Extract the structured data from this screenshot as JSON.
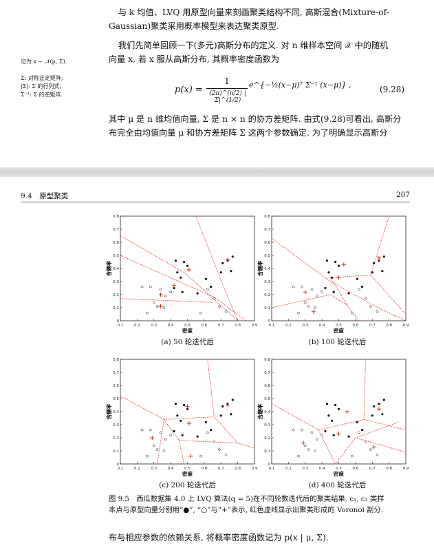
{
  "top_page": {
    "paragraph1": [
      "与 k 均值、LVQ 用原型向量来刻画聚类结构不同, 高斯混合(Mixture-of-",
      "Gaussian)聚类采用概率模型来表达聚类原型."
    ],
    "paragraph2": [
      "我们先简单回顾一下(多元)高斯分布的定义. 对 n 维样本空间 𝒳 中的随机",
      "向量 x, 若 x 服从高斯分布, 其概率密度函数为"
    ],
    "margin_notes": {
      "note1": "记为 x ∼ 𝒩(μ, Σ).",
      "note2": [
        "Σ: 对称正定矩阵;",
        "|Σ|: Σ 的行列式;",
        "Σ⁻¹: Σ 的逆矩阵."
      ]
    },
    "equation": {
      "lhs": "p(x) =",
      "numerator": "1",
      "denominator": "(2π)^(n/2) |Σ|^(1/2)",
      "exp": "e^{−½(x−μ)ᵀ Σ⁻¹ (x−μ)} ,",
      "number": "(9.28)"
    },
    "paragraph3": [
      "其中 μ 是 n 维均值向量, Σ 是 n × n 的协方差矩阵. 由式(9.28)可看出, 高斯分",
      "布完全由均值向量 μ 和协方差矩阵 Σ 这两个参数确定. 为了明确显示高斯分"
    ]
  },
  "bottom_page": {
    "header_left": "9.4　原型聚类",
    "header_right": "207",
    "subfig_captions": [
      "(a) 50 轮迭代后",
      "(b) 100 轮迭代后",
      "(c) 200 轮迭代后",
      "(d) 400 轮迭代后"
    ],
    "axis_xlabel": "密度",
    "axis_ylabel": "含糖率",
    "x_ticks": [
      "0.1",
      "0.2",
      "0.3",
      "0.4",
      "0.5",
      "0.6",
      "0.7",
      "0.8",
      "0.9"
    ],
    "y_ticks": [
      "0",
      "0.1",
      "0.2",
      "0.3",
      "0.4",
      "0.5",
      "0.6",
      "0.7",
      "0.8"
    ],
    "figure_caption": [
      "图 9.5　西瓜数据集 4.0 上 LVQ 算法(q = 5)在不同轮数迭代后的聚类结果. c₁, c₂ 类样",
      "本点与原型向量分别用“●”, “○”与“+”表示, 红色虚线显示出聚类形成的 Voronoi 剖分."
    ],
    "last_line": "布与相应参数的依赖关系, 将概率密度函数记为 p(x | μ, Σ)."
  },
  "chart_data": [
    {
      "type": "scatter",
      "title": "(a) 50 轮迭代后",
      "xlabel": "密度",
      "ylabel": "含糖率",
      "xlim": [
        0.1,
        0.9
      ],
      "ylim": [
        0,
        0.8
      ],
      "series": [
        {
          "name": "c1",
          "marker": "filled-dot",
          "points": [
            [
              0.43,
              0.46
            ],
            [
              0.48,
              0.45
            ],
            [
              0.44,
              0.37
            ],
            [
              0.5,
              0.42
            ],
            [
              0.46,
              0.33
            ],
            [
              0.42,
              0.25
            ],
            [
              0.47,
              0.22
            ],
            [
              0.56,
              0.21
            ],
            [
              0.61,
              0.32
            ],
            [
              0.64,
              0.26
            ],
            [
              0.7,
              0.37
            ],
            [
              0.74,
              0.46
            ],
            [
              0.77,
              0.49
            ],
            [
              0.76,
              0.38
            ],
            [
              0.71,
              0.44
            ]
          ]
        },
        {
          "name": "c2",
          "marker": "hollow-dot",
          "points": [
            [
              0.23,
              0.26
            ],
            [
              0.28,
              0.26
            ],
            [
              0.34,
              0.24
            ],
            [
              0.37,
              0.19
            ],
            [
              0.4,
              0.22
            ],
            [
              0.32,
              0.11
            ],
            [
              0.36,
              0.1
            ],
            [
              0.26,
              0.06
            ],
            [
              0.3,
              0.14
            ],
            [
              0.58,
              0.06
            ],
            [
              0.66,
              0.17
            ],
            [
              0.69,
              0.11
            ],
            [
              0.73,
              0.07
            ],
            [
              0.62,
              0.24
            ]
          ]
        },
        {
          "name": "prototypes",
          "marker": "plus",
          "color": "#d9301f",
          "points": [
            [
              0.34,
              0.11
            ],
            [
              0.34,
              0.2
            ],
            [
              0.42,
              0.27
            ],
            [
              0.51,
              0.39
            ],
            [
              0.74,
              0.47
            ]
          ]
        }
      ],
      "boundaries_color": "#d9301f"
    },
    {
      "type": "scatter",
      "title": "(b) 100 轮迭代后",
      "xlabel": "密度",
      "ylabel": "含糖率",
      "xlim": [
        0.1,
        0.9
      ],
      "ylim": [
        0,
        0.8
      ],
      "series": [
        {
          "name": "c1",
          "marker": "filled-dot",
          "points": [
            [
              0.43,
              0.46
            ],
            [
              0.48,
              0.45
            ],
            [
              0.44,
              0.37
            ],
            [
              0.5,
              0.42
            ],
            [
              0.46,
              0.33
            ],
            [
              0.42,
              0.25
            ],
            [
              0.47,
              0.22
            ],
            [
              0.56,
              0.21
            ],
            [
              0.61,
              0.32
            ],
            [
              0.64,
              0.26
            ],
            [
              0.7,
              0.37
            ],
            [
              0.74,
              0.46
            ],
            [
              0.77,
              0.49
            ],
            [
              0.76,
              0.38
            ],
            [
              0.71,
              0.44
            ]
          ]
        },
        {
          "name": "c2",
          "marker": "hollow-dot",
          "points": [
            [
              0.23,
              0.26
            ],
            [
              0.28,
              0.26
            ],
            [
              0.34,
              0.24
            ],
            [
              0.37,
              0.19
            ],
            [
              0.4,
              0.22
            ],
            [
              0.32,
              0.11
            ],
            [
              0.36,
              0.1
            ],
            [
              0.26,
              0.06
            ],
            [
              0.3,
              0.14
            ],
            [
              0.58,
              0.06
            ],
            [
              0.66,
              0.17
            ],
            [
              0.69,
              0.11
            ],
            [
              0.73,
              0.07
            ],
            [
              0.62,
              0.24
            ]
          ]
        },
        {
          "name": "prototypes",
          "marker": "plus",
          "color": "#d9301f",
          "points": [
            [
              0.35,
              0.07
            ],
            [
              0.3,
              0.22
            ],
            [
              0.5,
              0.33
            ],
            [
              0.53,
              0.43
            ],
            [
              0.74,
              0.48
            ]
          ]
        }
      ],
      "boundaries_color": "#d9301f"
    },
    {
      "type": "scatter",
      "title": "(c) 200 轮迭代后",
      "xlabel": "密度",
      "ylabel": "含糖率",
      "xlim": [
        0.1,
        0.9
      ],
      "ylim": [
        0,
        0.8
      ],
      "series": [
        {
          "name": "c1",
          "marker": "filled-dot",
          "points": [
            [
              0.43,
              0.46
            ],
            [
              0.48,
              0.45
            ],
            [
              0.44,
              0.37
            ],
            [
              0.5,
              0.42
            ],
            [
              0.46,
              0.33
            ],
            [
              0.42,
              0.25
            ],
            [
              0.47,
              0.22
            ],
            [
              0.56,
              0.21
            ],
            [
              0.61,
              0.32
            ],
            [
              0.64,
              0.26
            ],
            [
              0.7,
              0.37
            ],
            [
              0.74,
              0.46
            ],
            [
              0.77,
              0.49
            ],
            [
              0.76,
              0.38
            ],
            [
              0.71,
              0.44
            ]
          ]
        },
        {
          "name": "c2",
          "marker": "hollow-dot",
          "points": [
            [
              0.23,
              0.26
            ],
            [
              0.28,
              0.26
            ],
            [
              0.34,
              0.24
            ],
            [
              0.37,
              0.19
            ],
            [
              0.4,
              0.22
            ],
            [
              0.32,
              0.11
            ],
            [
              0.36,
              0.1
            ],
            [
              0.26,
              0.06
            ],
            [
              0.3,
              0.14
            ],
            [
              0.58,
              0.06
            ],
            [
              0.66,
              0.17
            ],
            [
              0.69,
              0.11
            ],
            [
              0.73,
              0.07
            ],
            [
              0.62,
              0.24
            ]
          ]
        },
        {
          "name": "prototypes",
          "marker": "plus",
          "color": "#d9301f",
          "points": [
            [
              0.29,
              0.2
            ],
            [
              0.52,
              0.06
            ],
            [
              0.51,
              0.31
            ],
            [
              0.5,
              0.44
            ],
            [
              0.74,
              0.45
            ]
          ]
        }
      ],
      "boundaries_color": "#d9301f"
    },
    {
      "type": "scatter",
      "title": "(d) 400 轮迭代后",
      "xlabel": "密度",
      "ylabel": "含糖率",
      "xlim": [
        0.1,
        0.9
      ],
      "ylim": [
        0,
        0.8
      ],
      "series": [
        {
          "name": "c1",
          "marker": "filled-dot",
          "points": [
            [
              0.43,
              0.46
            ],
            [
              0.48,
              0.45
            ],
            [
              0.44,
              0.37
            ],
            [
              0.5,
              0.42
            ],
            [
              0.46,
              0.33
            ],
            [
              0.42,
              0.25
            ],
            [
              0.47,
              0.22
            ],
            [
              0.56,
              0.21
            ],
            [
              0.61,
              0.32
            ],
            [
              0.64,
              0.26
            ],
            [
              0.7,
              0.37
            ],
            [
              0.74,
              0.46
            ],
            [
              0.77,
              0.49
            ],
            [
              0.76,
              0.38
            ],
            [
              0.71,
              0.44
            ]
          ]
        },
        {
          "name": "c2",
          "marker": "hollow-dot",
          "points": [
            [
              0.23,
              0.26
            ],
            [
              0.28,
              0.26
            ],
            [
              0.34,
              0.24
            ],
            [
              0.37,
              0.19
            ],
            [
              0.4,
              0.22
            ],
            [
              0.32,
              0.11
            ],
            [
              0.36,
              0.1
            ],
            [
              0.26,
              0.06
            ],
            [
              0.3,
              0.14
            ],
            [
              0.58,
              0.06
            ],
            [
              0.66,
              0.17
            ],
            [
              0.69,
              0.11
            ],
            [
              0.73,
              0.07
            ],
            [
              0.62,
              0.24
            ]
          ]
        },
        {
          "name": "prototypes",
          "marker": "plus",
          "color": "#d9301f",
          "points": [
            [
              0.29,
              0.16
            ],
            [
              0.5,
              0.23
            ],
            [
              0.55,
              0.4
            ],
            [
              0.74,
              0.42
            ],
            [
              0.71,
              0.13
            ]
          ]
        }
      ],
      "boundaries_color": "#d9301f"
    }
  ]
}
